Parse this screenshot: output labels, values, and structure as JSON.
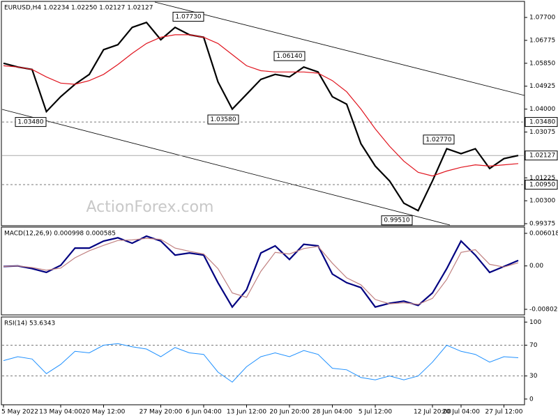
{
  "chart_data": [
    {
      "type": "line",
      "title": "EURUSD,H4  1.02234 1.02250 1.02127 1.02127",
      "watermark": "ActionForex.com",
      "ylim": [
        0.9932,
        1.0832
      ],
      "yticks": [
        {
          "value": 1.077,
          "label": "1.07700"
        },
        {
          "value": 1.06775,
          "label": "1.06775"
        },
        {
          "value": 1.0585,
          "label": "1.05850"
        },
        {
          "value": 1.04925,
          "label": "1.04925"
        },
        {
          "value": 1.04,
          "label": "1.04000"
        },
        {
          "value": 1.03075,
          "label": "1.03075"
        },
        {
          "value": 1.01225,
          "label": "1.01225"
        },
        {
          "value": 1.003,
          "label": "1.00300"
        },
        {
          "value": 0.99375,
          "label": "0.99375"
        }
      ],
      "series": [
        {
          "color": "#000000",
          "values": [
            1.0585,
            1.057,
            1.056,
            1.039,
            1.045,
            1.05,
            1.054,
            1.064,
            1.066,
            1.073,
            1.075,
            1.068,
            1.073,
            1.07,
            1.069,
            1.051,
            1.04,
            1.046,
            1.052,
            1.054,
            1.053,
            1.057,
            1.055,
            1.045,
            1.042,
            1.026,
            1.017,
            1.011,
            1.002,
            0.999,
            1.011,
            1.024,
            1.022,
            1.024,
            1.016,
            1.02,
            1.02127
          ]
        },
        {
          "color": "#e0141e",
          "values": [
            1.0575,
            1.057,
            1.056,
            1.053,
            1.0505,
            1.05,
            1.0515,
            1.054,
            1.058,
            1.0625,
            1.0665,
            1.069,
            1.07,
            1.07,
            1.069,
            1.0665,
            1.062,
            1.0575,
            1.0555,
            1.055,
            1.055,
            1.055,
            1.0545,
            1.0515,
            1.047,
            1.04,
            1.032,
            1.025,
            1.019,
            1.0145,
            1.013,
            1.015,
            1.0165,
            1.0175,
            1.017,
            1.0175,
            1.018
          ]
        }
      ],
      "levels": [
        {
          "value": 1.0348,
          "label": "1.03480"
        },
        {
          "value": 1.0095,
          "label": "1.00950"
        }
      ],
      "last_price": {
        "value": 1.02127,
        "label": "1.02127"
      },
      "annotations": [
        {
          "value": 1.0773,
          "label": "1.07730"
        },
        {
          "value": 1.0614,
          "label": "1.06140"
        },
        {
          "value": 1.0358,
          "label": "1.03580"
        },
        {
          "value": 1.0348,
          "label": "1.03480"
        },
        {
          "value": 1.0277,
          "label": "1.02770"
        },
        {
          "value": 0.9951,
          "label": "0.99510"
        }
      ]
    },
    {
      "type": "line",
      "title": "MACD(12,26,9) 0.000998 0.000585",
      "ylim": [
        -0.00892,
        0.00704
      ],
      "yticks": [
        0.006018,
        {
          "value": 0,
          "label": "0.00"
        },
        -0.00802
      ],
      "series": [
        {
          "color": "#000080",
          "values": [
            -0.0001,
            0,
            -0.0005,
            -0.0012,
            0.0001,
            0.0033,
            0.0033,
            0.0046,
            0.0052,
            0.0042,
            0.0055,
            0.0046,
            0.002,
            0.0024,
            0.002,
            -0.0031,
            -0.0076,
            -0.0044,
            0.0024,
            0.0037,
            0.0012,
            0.004,
            0.0037,
            -0.0015,
            -0.0031,
            -0.004,
            -0.0076,
            -0.0069,
            -0.0065,
            -0.0073,
            -0.005,
            -0.0005,
            0.0046,
            0.002,
            -0.0012,
            -0.0001,
            0.000998
          ]
        },
        {
          "color": "#c08080",
          "values": [
            -0.0001,
            0,
            -0.0003,
            -0.0008,
            -0.0004,
            0.0015,
            0.0028,
            0.0038,
            0.0047,
            0.0048,
            0.0051,
            0.0049,
            0.0033,
            0.0027,
            0.0022,
            -0.0005,
            -0.005,
            -0.0058,
            -0.001,
            0.0025,
            0.0022,
            0.0032,
            0.0036,
            0.0005,
            -0.0022,
            -0.0035,
            -0.0062,
            -0.007,
            -0.0068,
            -0.0071,
            -0.006,
            -0.0025,
            0.0025,
            0.003,
            0.0003,
            -0.0002,
            0.000585
          ]
        }
      ]
    },
    {
      "type": "line",
      "title": "RSI(14) 53.6343",
      "ylim": [
        -6.5,
        105.7
      ],
      "yticks": [
        0,
        30,
        70,
        100
      ],
      "levels": [
        30,
        70
      ],
      "categories": [
        "5 May 2022",
        null,
        null,
        null,
        "13 May 04:00",
        null,
        null,
        "20 May 12:00",
        null,
        null,
        null,
        "27 May 20:00",
        null,
        null,
        "6 Jun 04:00",
        null,
        null,
        "13 Jun 12:00",
        null,
        null,
        "20 Jun 20:00",
        null,
        null,
        "28 Jun 04:00",
        null,
        null,
        "5 Jul 12:00",
        null,
        null,
        null,
        "12 Jul 20:00",
        null,
        "20 Jul 04:00",
        null,
        null,
        "27 Jul 12:00",
        null
      ],
      "series": [
        {
          "color": "#1e90ff",
          "values": [
            50,
            55,
            52,
            33,
            45,
            62,
            60,
            70,
            72,
            68,
            65,
            55,
            67,
            60,
            58,
            35,
            22,
            42,
            55,
            60,
            55,
            63,
            58,
            40,
            38,
            28,
            25,
            30,
            25,
            30,
            48,
            70,
            62,
            58,
            48,
            55,
            53.6343
          ]
        }
      ]
    }
  ]
}
